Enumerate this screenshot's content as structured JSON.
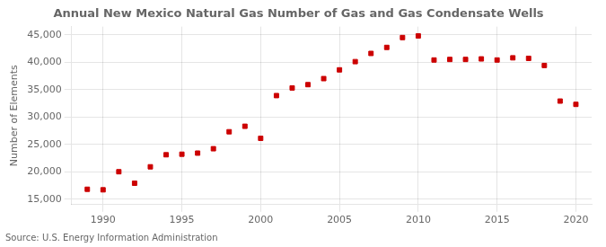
{
  "chart_data": {
    "type": "scatter",
    "title": "Annual New Mexico Natural Gas Number of Gas and Gas Condensate Wells",
    "ylabel": "Number of Elements",
    "source": "Source: U.S. Energy Information Administration",
    "x": [
      1989,
      1990,
      1991,
      1992,
      1993,
      1994,
      1995,
      1996,
      1997,
      1998,
      1999,
      2000,
      2001,
      2002,
      2003,
      2004,
      2005,
      2006,
      2007,
      2008,
      2009,
      2010,
      2011,
      2012,
      2013,
      2014,
      2015,
      2016,
      2017,
      2018,
      2019,
      2020
    ],
    "values": [
      16800,
      16700,
      20000,
      17900,
      20900,
      23100,
      23200,
      23400,
      24200,
      27300,
      28300,
      26100,
      33900,
      35300,
      35900,
      37000,
      38600,
      40100,
      41600,
      42700,
      44500,
      44800,
      40400,
      40500,
      40500,
      40600,
      40400,
      40800,
      40700,
      39400,
      32900,
      32300
    ],
    "color": "#cc0000",
    "marker": "square",
    "xlim": [
      1988,
      2021
    ],
    "xticks": [
      1990,
      1995,
      2000,
      2005,
      2010,
      2015,
      2020
    ],
    "ylim": [
      14000,
      46500
    ],
    "yticks": [
      {
        "value": 15000,
        "label": "15,000"
      },
      {
        "value": 20000,
        "label": "20,000"
      },
      {
        "value": 25000,
        "label": "25,000"
      },
      {
        "value": 30000,
        "label": "30,000"
      },
      {
        "value": 35000,
        "label": "35,000"
      },
      {
        "value": 40000,
        "label": "40,000"
      },
      {
        "value": 45000,
        "label": "45,000"
      }
    ],
    "grid": true
  }
}
